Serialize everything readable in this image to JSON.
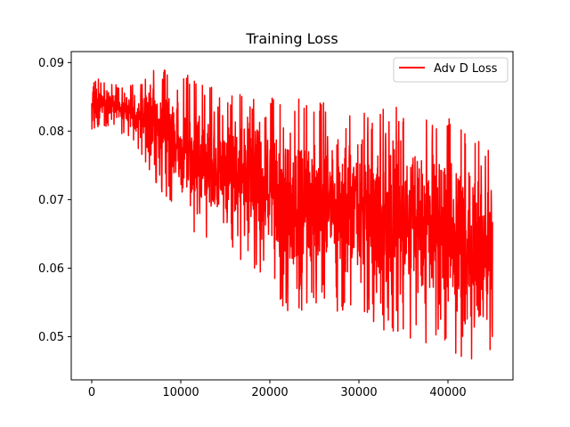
{
  "chart_data": {
    "type": "line",
    "title": "Training Loss",
    "xlabel": "",
    "ylabel": "",
    "xlim": [
      -2300,
      47300
    ],
    "ylim": [
      0.0437,
      0.0916
    ],
    "x_ticks": [
      0,
      10000,
      20000,
      30000,
      40000
    ],
    "x_tick_labels": [
      "0",
      "10000",
      "20000",
      "30000",
      "40000"
    ],
    "y_ticks": [
      0.05,
      0.06,
      0.07,
      0.08,
      0.09
    ],
    "y_tick_labels": [
      "0.05",
      "0.06",
      "0.07",
      "0.08",
      "0.09"
    ],
    "grid": false,
    "legend": {
      "position": "top-right",
      "entries": [
        "Adv D Loss"
      ]
    },
    "series": [
      {
        "name": "Adv D Loss",
        "color": "#ff0000",
        "x_range": [
          0,
          45000
        ],
        "upper_envelope": [
          [
            0,
            0.0878
          ],
          [
            2500,
            0.0872
          ],
          [
            5000,
            0.0868
          ],
          [
            7500,
            0.09
          ],
          [
            10000,
            0.0888
          ],
          [
            12500,
            0.0868
          ],
          [
            15000,
            0.0862
          ],
          [
            20000,
            0.086
          ],
          [
            25000,
            0.0848
          ],
          [
            30000,
            0.0835
          ],
          [
            35000,
            0.0835
          ],
          [
            40000,
            0.082
          ],
          [
            45000,
            0.0775
          ]
        ],
        "lower_envelope": [
          [
            0,
            0.08
          ],
          [
            2500,
            0.0805
          ],
          [
            5000,
            0.078
          ],
          [
            7500,
            0.0712
          ],
          [
            10000,
            0.0668
          ],
          [
            12500,
            0.064
          ],
          [
            15000,
            0.062
          ],
          [
            20000,
            0.0575
          ],
          [
            22500,
            0.0512
          ],
          [
            25000,
            0.055
          ],
          [
            30000,
            0.0525
          ],
          [
            35000,
            0.049
          ],
          [
            40000,
            0.048
          ],
          [
            43000,
            0.0455
          ],
          [
            45000,
            0.046
          ]
        ]
      }
    ]
  }
}
